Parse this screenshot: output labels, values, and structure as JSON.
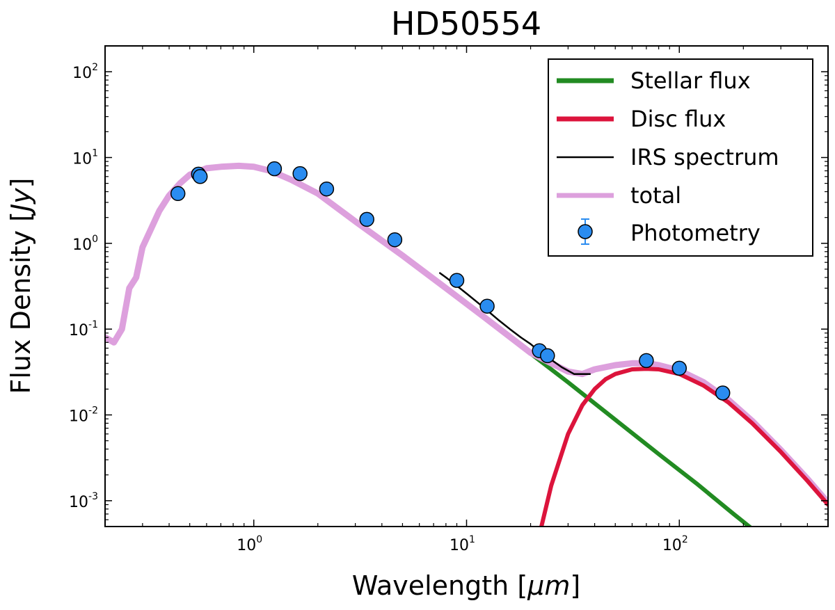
{
  "chart_data": {
    "type": "line",
    "title": "HD50554",
    "xlabel": "Wavelength [",
    "xlabel_unit": "μm",
    "xlabel_close": "]",
    "ylabel": "Flux Density [",
    "ylabel_unit": "Jy",
    "ylabel_close": "]",
    "xscale": "log",
    "yscale": "log",
    "xlim": [
      0.2,
      500
    ],
    "ylim": [
      0.0005,
      200
    ],
    "x_ticks": [
      {
        "value": 1,
        "base": "10",
        "exp": "0"
      },
      {
        "value": 10,
        "base": "10",
        "exp": "1"
      },
      {
        "value": 100,
        "base": "10",
        "exp": "2"
      }
    ],
    "y_ticks": [
      {
        "value": 0.001,
        "base": "10",
        "exp": "-3"
      },
      {
        "value": 0.01,
        "base": "10",
        "exp": "-2"
      },
      {
        "value": 0.1,
        "base": "10",
        "exp": "-1"
      },
      {
        "value": 1,
        "base": "10",
        "exp": "0"
      },
      {
        "value": 10,
        "base": "10",
        "exp": "1"
      },
      {
        "value": 100,
        "base": "10",
        "exp": "2"
      }
    ],
    "legend_position": "top-right",
    "series": [
      {
        "name": "Stellar flux",
        "color": "#228b22",
        "x": [
          0.2,
          0.22,
          0.24,
          0.26,
          0.28,
          0.3,
          0.33,
          0.36,
          0.4,
          0.45,
          0.5,
          0.6,
          0.7,
          0.85,
          1.0,
          1.2,
          1.5,
          2.0,
          3.0,
          5.0,
          8.0,
          12,
          20,
          30,
          50,
          80,
          120,
          180,
          230
        ],
        "y": [
          0.08,
          0.07,
          0.1,
          0.3,
          0.4,
          0.9,
          1.5,
          2.4,
          3.6,
          5.0,
          6.3,
          7.5,
          7.8,
          8.0,
          7.8,
          7.0,
          5.5,
          3.8,
          1.8,
          0.72,
          0.3,
          0.14,
          0.052,
          0.024,
          0.0088,
          0.0035,
          0.0016,
          0.0007,
          0.00043
        ]
      },
      {
        "name": "Disc flux",
        "color": "#dc143c",
        "x": [
          22,
          25,
          30,
          35,
          40,
          45,
          50,
          60,
          70,
          80,
          100,
          130,
          170,
          220,
          300,
          400,
          500
        ],
        "y": [
          0.0004,
          0.0015,
          0.006,
          0.013,
          0.02,
          0.026,
          0.03,
          0.034,
          0.0345,
          0.034,
          0.03,
          0.022,
          0.014,
          0.008,
          0.0037,
          0.0017,
          0.0009
        ]
      },
      {
        "name": "IRS spectrum",
        "color": "#000000",
        "x": [
          7.5,
          8,
          9,
          10,
          12,
          14,
          16,
          18,
          20,
          22,
          25,
          28,
          32,
          36,
          38
        ],
        "y": [
          0.45,
          0.4,
          0.32,
          0.26,
          0.18,
          0.13,
          0.1,
          0.08,
          0.067,
          0.055,
          0.044,
          0.036,
          0.03,
          0.03,
          0.03
        ]
      },
      {
        "name": "total",
        "color": "#dda0dd",
        "x": [
          0.2,
          0.22,
          0.24,
          0.26,
          0.28,
          0.3,
          0.33,
          0.36,
          0.4,
          0.45,
          0.5,
          0.6,
          0.7,
          0.85,
          1.0,
          1.2,
          1.5,
          2.0,
          3.0,
          5.0,
          8.0,
          12,
          20,
          25,
          30,
          35,
          40,
          50,
          60,
          70,
          80,
          100,
          130,
          170,
          220,
          300,
          400,
          500
        ],
        "y": [
          0.08,
          0.07,
          0.1,
          0.3,
          0.4,
          0.9,
          1.5,
          2.4,
          3.6,
          5.0,
          6.3,
          7.5,
          7.8,
          8.0,
          7.8,
          7.0,
          5.5,
          3.8,
          1.8,
          0.72,
          0.3,
          0.14,
          0.053,
          0.04,
          0.032,
          0.03,
          0.034,
          0.038,
          0.04,
          0.04,
          0.038,
          0.033,
          0.024,
          0.015,
          0.0085,
          0.0039,
          0.0018,
          0.00095
        ]
      },
      {
        "name": "Photometry",
        "color": "#2a8cf0",
        "x": [
          0.44,
          0.55,
          0.56,
          1.25,
          1.65,
          2.2,
          3.4,
          4.6,
          9.0,
          12.5,
          22,
          24,
          70,
          100,
          160
        ],
        "y": [
          3.8,
          6.4,
          6.0,
          7.4,
          6.5,
          4.3,
          1.9,
          1.1,
          0.37,
          0.185,
          0.056,
          0.049,
          0.043,
          0.035,
          0.018
        ]
      }
    ]
  }
}
